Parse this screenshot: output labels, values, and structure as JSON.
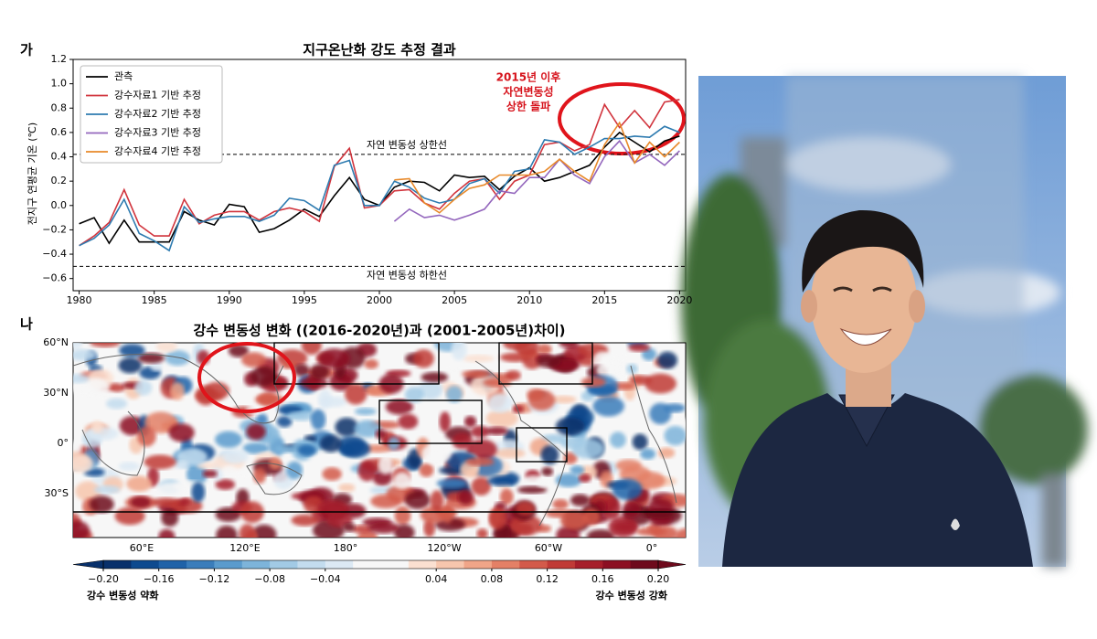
{
  "panel_labels": [
    "가",
    "나"
  ],
  "chart_data": {
    "type": "line",
    "title": "지구온난화 강도 추정 결과",
    "y_label": "전지구 연평균 기온 (℃)",
    "x": [
      1980,
      1981,
      1982,
      1983,
      1984,
      1985,
      1986,
      1987,
      1988,
      1989,
      1990,
      1991,
      1992,
      1993,
      1994,
      1995,
      1996,
      1997,
      1998,
      1999,
      2000,
      2001,
      2002,
      2003,
      2004,
      2005,
      2006,
      2007,
      2008,
      2009,
      2010,
      2011,
      2012,
      2013,
      2014,
      2015,
      2016,
      2017,
      2018,
      2019,
      2020
    ],
    "series": [
      {
        "name": "관측",
        "color": "#000000",
        "values": [
          -0.15,
          -0.1,
          -0.31,
          -0.12,
          -0.3,
          -0.3,
          -0.3,
          -0.05,
          -0.12,
          -0.16,
          0.01,
          -0.01,
          -0.22,
          -0.19,
          -0.12,
          -0.03,
          -0.09,
          0.08,
          0.23,
          0.05,
          0.0,
          0.15,
          0.2,
          0.19,
          0.12,
          0.25,
          0.23,
          0.24,
          0.13,
          0.24,
          0.31,
          0.2,
          0.23,
          0.28,
          0.33,
          0.48,
          0.6,
          0.52,
          0.44,
          0.53,
          0.57
        ]
      },
      {
        "name": "강수자료1 기반 추정",
        "color": "#d1343d",
        "values": [
          -0.33,
          -0.25,
          -0.14,
          0.13,
          -0.16,
          -0.25,
          -0.25,
          0.05,
          -0.15,
          -0.08,
          -0.05,
          -0.05,
          -0.12,
          -0.05,
          -0.02,
          -0.05,
          -0.13,
          0.32,
          0.47,
          -0.02,
          0.0,
          0.12,
          0.13,
          0.02,
          -0.03,
          0.1,
          0.2,
          0.22,
          0.05,
          0.2,
          0.25,
          0.5,
          0.52,
          0.45,
          0.5,
          0.83,
          0.64,
          0.78,
          0.64,
          0.85,
          0.87
        ]
      },
      {
        "name": "강수자료2 기반 추정",
        "color": "#2e7bb0",
        "values": [
          -0.33,
          -0.27,
          -0.16,
          0.05,
          -0.23,
          -0.29,
          -0.37,
          -0.01,
          -0.14,
          -0.11,
          -0.09,
          -0.09,
          -0.13,
          -0.08,
          0.06,
          0.04,
          -0.04,
          0.33,
          0.37,
          0.0,
          0.0,
          0.2,
          0.15,
          0.06,
          0.02,
          0.05,
          0.18,
          0.22,
          0.1,
          0.28,
          0.3,
          0.54,
          0.52,
          0.42,
          0.48,
          0.55,
          0.55,
          0.57,
          0.56,
          0.65,
          0.6
        ]
      },
      {
        "name": "강수자료3 기반 추정",
        "color": "#9467bd",
        "values": [
          null,
          null,
          null,
          null,
          null,
          null,
          null,
          null,
          null,
          null,
          null,
          null,
          null,
          null,
          null,
          null,
          null,
          null,
          null,
          null,
          null,
          -0.13,
          -0.03,
          -0.1,
          -0.08,
          -0.12,
          -0.08,
          -0.03,
          0.12,
          0.1,
          0.23,
          0.23,
          0.38,
          0.25,
          0.18,
          0.4,
          0.53,
          0.35,
          0.42,
          0.33,
          0.45
        ]
      },
      {
        "name": "강수자료4 기반 추정",
        "color": "#e8892a",
        "values": [
          null,
          null,
          null,
          null,
          null,
          null,
          null,
          null,
          null,
          null,
          null,
          null,
          null,
          null,
          null,
          null,
          null,
          null,
          null,
          null,
          null,
          0.21,
          0.22,
          0.02,
          -0.06,
          0.05,
          0.14,
          0.17,
          0.25,
          0.25,
          0.25,
          0.28,
          0.38,
          0.28,
          0.2,
          0.5,
          0.68,
          0.35,
          0.52,
          0.4,
          0.52
        ]
      }
    ],
    "xlim": [
      1979.6,
      2020.4
    ],
    "xticks": [
      1980,
      1985,
      1990,
      1995,
      2000,
      2005,
      2010,
      2015,
      2020
    ],
    "ylim": [
      -0.7,
      1.2
    ],
    "yticks": [
      {
        "value": -0.6,
        "label": "−0.6"
      },
      {
        "value": -0.4,
        "label": "−0.4"
      },
      {
        "value": -0.2,
        "label": "−0.2"
      },
      {
        "value": 0,
        "label": "0.0"
      },
      0.2,
      0.4,
      0.6,
      0.8,
      {
        "value": 1,
        "label": "1.0"
      },
      1.2
    ],
    "reference_lines": [
      {
        "value": 0.42,
        "label": "자연 변동성 상한선"
      },
      {
        "value": -0.5,
        "label": "자연 변동성 하한선"
      }
    ],
    "annotation": [
      "2015년 이후",
      "자연변동성",
      "상한 돌파"
    ],
    "legend": "upper left",
    "grid": false
  },
  "map": {
    "title": "강수 변동성 변화 ((2016-2020년)과 (2001-2005년)차이)",
    "lat_labels": [
      "60°N",
      "30°N",
      "0°",
      "30°S"
    ],
    "lon_labels": [
      "60°E",
      "120°E",
      "180°",
      "120°W",
      "60°W",
      "0°"
    ],
    "colorbar": {
      "lim": [
        -0.2,
        0.2
      ],
      "ticks": [
        {
          "value": -0.2,
          "label": "−0.20"
        },
        {
          "value": -0.16,
          "label": "−0.16"
        },
        {
          "value": -0.12,
          "label": "−0.12"
        },
        {
          "value": -0.08,
          "label": "−0.08"
        },
        {
          "value": -0.04,
          "label": "−0.04"
        },
        {
          "value": 0.04,
          "label": "0.04"
        },
        {
          "value": 0.08,
          "label": "0.08"
        },
        {
          "value": 0.12,
          "label": "0.12"
        },
        {
          "value": 0.16,
          "label": "0.16"
        },
        {
          "value": 0.2,
          "label": "0.20"
        }
      ],
      "colors": [
        "#08306b",
        "#0d4a8f",
        "#1f62a8",
        "#3a7dbb",
        "#5a9bcd",
        "#7db4da",
        "#a2cae5",
        "#c3dcee",
        "#dce9f4",
        "#f7f7f7",
        "#f7f7f7",
        "#fbe0d1",
        "#f7c6ad",
        "#f0a588",
        "#e48066",
        "#d35a4a",
        "#c03a36",
        "#a61e2a",
        "#8c0f22",
        "#6e0a1c"
      ],
      "left_label": "강수 변동성 약화",
      "right_label": "강수 변동성 강화"
    }
  }
}
